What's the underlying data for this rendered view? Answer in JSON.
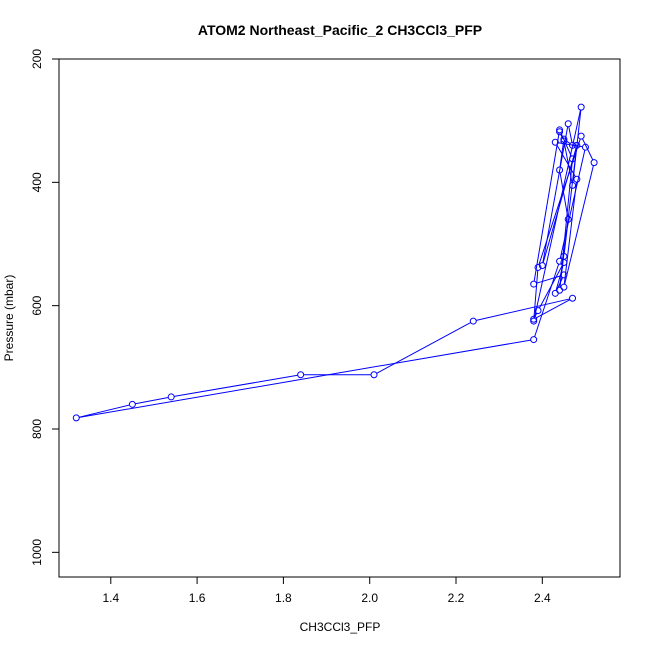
{
  "chart_data": {
    "type": "line",
    "title": "ATOM2 Northeast_Pacific_2 CH3CCl3_PFP",
    "xlabel": "CH3CCl3_PFP",
    "ylabel": "Pressure (mbar)",
    "xlim": [
      1.28,
      2.58
    ],
    "ylim": [
      1040,
      200
    ],
    "y_reversed": true,
    "xticks": [
      1.4,
      1.6,
      1.8,
      2.0,
      2.2,
      2.4
    ],
    "xtick_labels": [
      "1.4",
      "1.6",
      "1.8",
      "2.0",
      "2.2",
      "2.4"
    ],
    "yticks": [
      200,
      400,
      600,
      800,
      1000
    ],
    "ytick_labels": [
      "200",
      "400",
      "600",
      "800",
      "1000"
    ],
    "grid": false,
    "legend": "none",
    "series": [
      {
        "color": "#0000ff",
        "marker": "open-circle",
        "x": [
          2.45,
          2.46,
          2.44,
          2.45,
          2.47,
          2.46,
          2.4,
          2.48,
          2.44,
          2.47,
          2.44,
          2.38,
          2.45,
          2.43,
          2.45,
          2.39,
          2.38,
          2.47,
          2.24,
          2.01,
          1.84,
          1.54,
          1.45,
          1.32,
          2.38,
          2.44,
          2.5,
          2.43,
          2.48,
          2.45,
          2.52,
          2.49,
          2.39,
          2.38,
          2.49,
          2.47,
          2.45,
          2.44
        ],
        "y": [
          520,
          460,
          380,
          330,
          340,
          305,
          535,
          340,
          575,
          362,
          315,
          565,
          550,
          580,
          530,
          608,
          622,
          588,
          625,
          712,
          712,
          748,
          760,
          782,
          655,
          528,
          343,
          335,
          395,
          570,
          368,
          325,
          538,
          625,
          278,
          405,
          333,
          318
        ]
      }
    ]
  }
}
